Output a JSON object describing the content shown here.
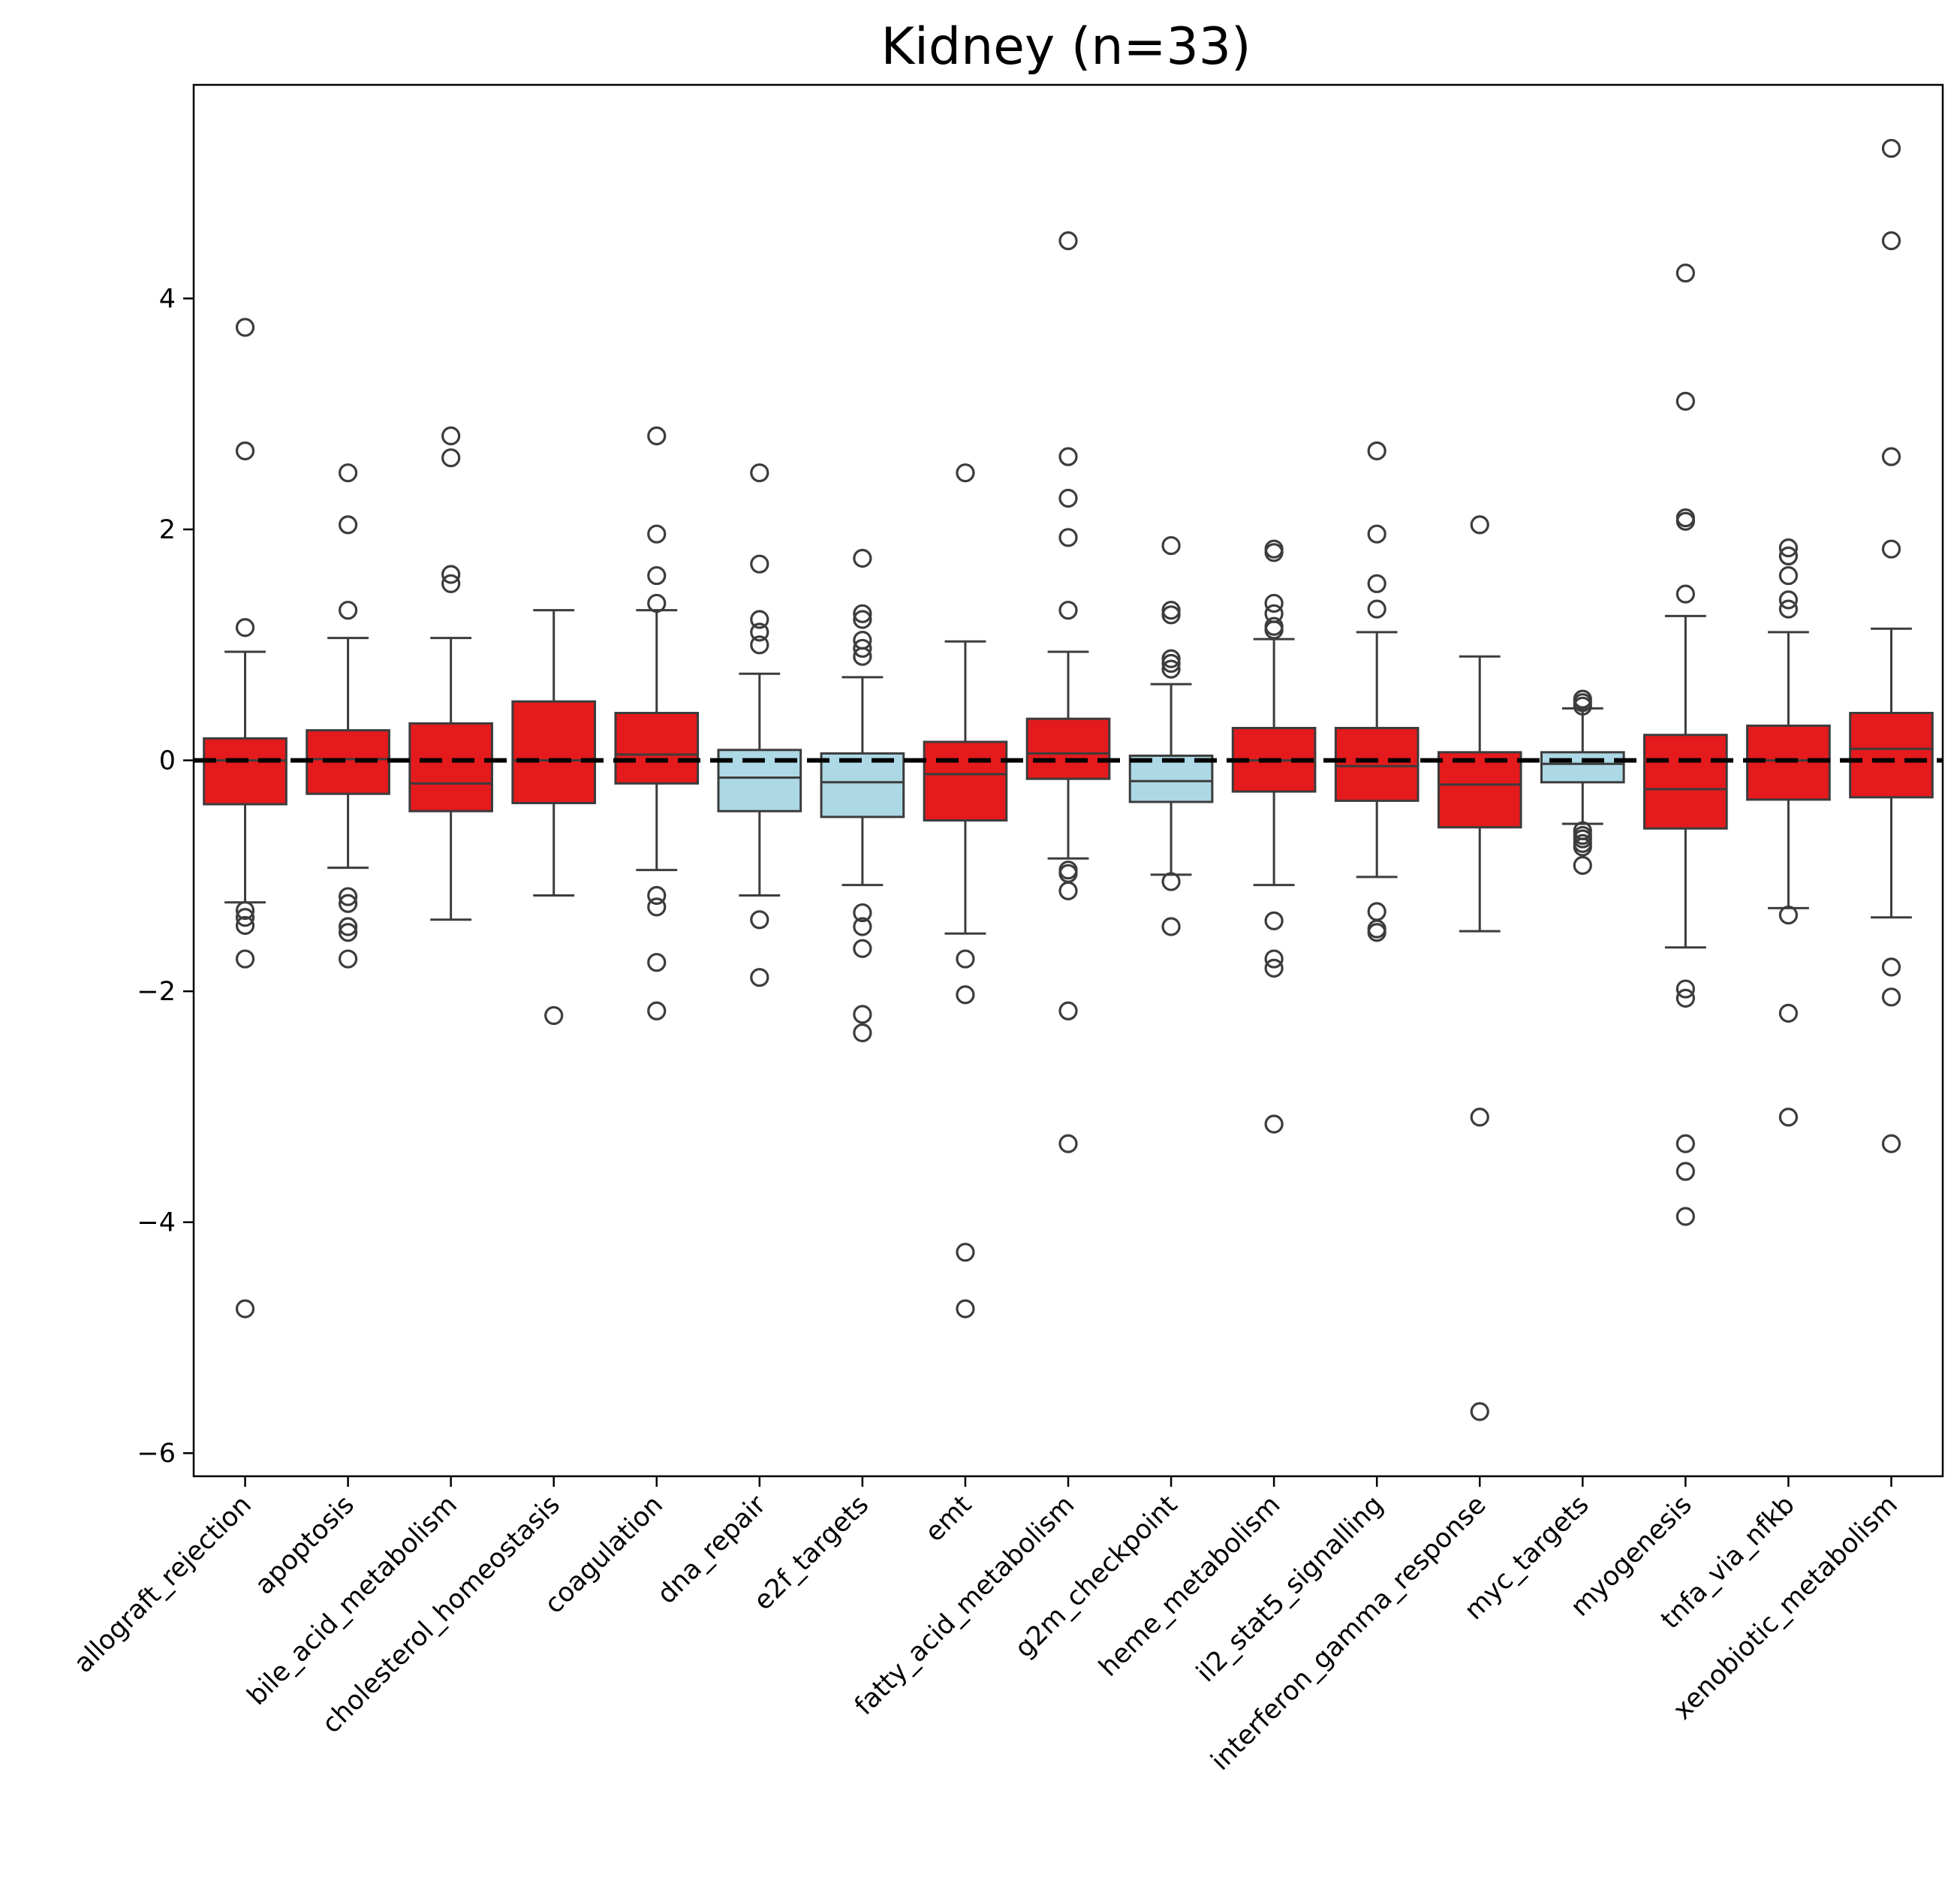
{
  "chart_data": {
    "type": "box",
    "title": "Kidney (n=33)",
    "xlabel": "",
    "ylabel": "",
    "ylim": [
      -6.2,
      5.85
    ],
    "yticks": [
      -6,
      -4,
      -2,
      0,
      2,
      4
    ],
    "ytick_labels": [
      "−6",
      "−4",
      "−2",
      "0",
      "2",
      "4"
    ],
    "reference_line": {
      "y": 0,
      "style": "dashed",
      "color": "#000000"
    },
    "colors": {
      "up": "#e41a1c",
      "down": "#add8e6",
      "edge": "#3c3c3c"
    },
    "categories": [
      "allograft_rejection",
      "apoptosis",
      "bile_acid_metabolism",
      "cholesterol_homeostasis",
      "coagulation",
      "dna_repair",
      "e2f_targets",
      "emt",
      "fatty_acid_metabolism",
      "g2m_checkpoint",
      "heme_metabolism",
      "il2_stat5_signalling",
      "interferon_gamma_response",
      "myc_targets",
      "myogenesis",
      "tnfa_via_nfkb",
      "xenobiotic_metabolism"
    ],
    "boxes": [
      {
        "label": "allograft_rejection",
        "color": "up",
        "whislo": -1.23,
        "q1": -0.38,
        "med": 0.0,
        "q3": 0.19,
        "whishi": 0.94,
        "fliers": [
          3.75,
          2.68,
          1.15,
          -1.3,
          -1.36,
          -1.43,
          -1.72,
          -4.75
        ]
      },
      {
        "label": "apoptosis",
        "color": "up",
        "whislo": -0.93,
        "q1": -0.29,
        "med": 0.01,
        "q3": 0.26,
        "whishi": 1.06,
        "fliers": [
          2.49,
          2.04,
          1.3,
          -1.18,
          -1.24,
          -1.44,
          -1.49,
          -1.72
        ]
      },
      {
        "label": "bile_acid_metabolism",
        "color": "up",
        "whislo": -1.38,
        "q1": -0.44,
        "med": -0.2,
        "q3": 0.32,
        "whishi": 1.06,
        "fliers": [
          2.81,
          2.62,
          1.61,
          1.53
        ]
      },
      {
        "label": "cholesterol_homeostasis",
        "color": "up",
        "whislo": -1.17,
        "q1": -0.37,
        "med": 0.0,
        "q3": 0.51,
        "whishi": 1.3,
        "fliers": [
          -2.21
        ]
      },
      {
        "label": "coagulation",
        "color": "up",
        "whislo": -0.95,
        "q1": -0.2,
        "med": 0.05,
        "q3": 0.41,
        "whishi": 1.3,
        "fliers": [
          2.81,
          1.96,
          1.6,
          1.36,
          -1.17,
          -1.27,
          -1.75,
          -2.17
        ]
      },
      {
        "label": "dna_repair",
        "color": "down",
        "whislo": -1.17,
        "q1": -0.44,
        "med": -0.15,
        "q3": 0.09,
        "whishi": 0.75,
        "fliers": [
          2.49,
          1.7,
          1.22,
          1.11,
          1.0,
          -1.38,
          -1.88
        ]
      },
      {
        "label": "e2f_targets",
        "color": "down",
        "whislo": -1.08,
        "q1": -0.49,
        "med": -0.19,
        "q3": 0.06,
        "whishi": 0.72,
        "fliers": [
          1.75,
          1.27,
          1.22,
          1.04,
          0.97,
          0.9,
          -1.32,
          -1.44,
          -1.63,
          -2.2,
          -2.36
        ]
      },
      {
        "label": "emt",
        "color": "up",
        "whislo": -1.5,
        "q1": -0.52,
        "med": -0.12,
        "q3": 0.16,
        "whishi": 1.03,
        "fliers": [
          2.49,
          -1.72,
          -2.03,
          -4.26,
          -4.75
        ]
      },
      {
        "label": "fatty_acid_metabolism",
        "color": "up",
        "whislo": -0.85,
        "q1": -0.16,
        "med": 0.06,
        "q3": 0.36,
        "whishi": 0.94,
        "fliers": [
          4.5,
          2.63,
          2.27,
          1.93,
          1.3,
          -0.95,
          -0.98,
          -1.13,
          -2.17,
          -3.32
        ]
      },
      {
        "label": "g2m_checkpoint",
        "color": "down",
        "whislo": -0.99,
        "q1": -0.36,
        "med": -0.18,
        "q3": 0.04,
        "whishi": 0.66,
        "fliers": [
          1.86,
          1.3,
          1.26,
          0.88,
          0.84,
          0.79,
          -1.05,
          -1.44
        ]
      },
      {
        "label": "heme_metabolism",
        "color": "up",
        "whislo": -1.08,
        "q1": -0.27,
        "med": 0.0,
        "q3": 0.28,
        "whishi": 1.05,
        "fliers": [
          1.83,
          1.8,
          1.36,
          1.27,
          1.16,
          1.13,
          -1.39,
          -1.72,
          -1.8,
          -3.15
        ]
      },
      {
        "label": "il2_stat5_signalling",
        "color": "up",
        "whislo": -1.01,
        "q1": -0.35,
        "med": -0.05,
        "q3": 0.28,
        "whishi": 1.11,
        "fliers": [
          2.68,
          1.96,
          1.53,
          1.31,
          -1.31,
          -1.46,
          -1.49
        ]
      },
      {
        "label": "interferon_gamma_response",
        "color": "up",
        "whislo": -1.48,
        "q1": -0.58,
        "med": -0.21,
        "q3": 0.07,
        "whishi": 0.9,
        "fliers": [
          2.04,
          -3.09,
          -5.64
        ]
      },
      {
        "label": "myc_targets",
        "color": "down",
        "whislo": -0.55,
        "q1": -0.19,
        "med": -0.03,
        "q3": 0.07,
        "whishi": 0.45,
        "fliers": [
          0.53,
          0.5,
          0.47,
          -0.61,
          -0.65,
          -0.68,
          -0.72,
          -0.75,
          -0.91
        ]
      },
      {
        "label": "myogenesis",
        "color": "up",
        "whislo": -1.62,
        "q1": -0.59,
        "med": -0.25,
        "q3": 0.22,
        "whishi": 1.25,
        "fliers": [
          4.22,
          3.11,
          2.1,
          2.07,
          1.44,
          -1.98,
          -2.06,
          -3.32,
          -3.56,
          -3.95
        ]
      },
      {
        "label": "tnfa_via_nfkb",
        "color": "up",
        "whislo": -1.28,
        "q1": -0.34,
        "med": 0.0,
        "q3": 0.3,
        "whishi": 1.11,
        "fliers": [
          1.84,
          1.77,
          1.6,
          1.39,
          1.31,
          -1.34,
          -2.19,
          -3.09
        ]
      },
      {
        "label": "xenobiotic_metabolism",
        "color": "up",
        "whislo": -1.36,
        "q1": -0.32,
        "med": 0.1,
        "q3": 0.41,
        "whishi": 1.14,
        "fliers": [
          5.3,
          4.5,
          2.63,
          1.83,
          -1.79,
          -2.05,
          -3.32
        ]
      }
    ]
  }
}
